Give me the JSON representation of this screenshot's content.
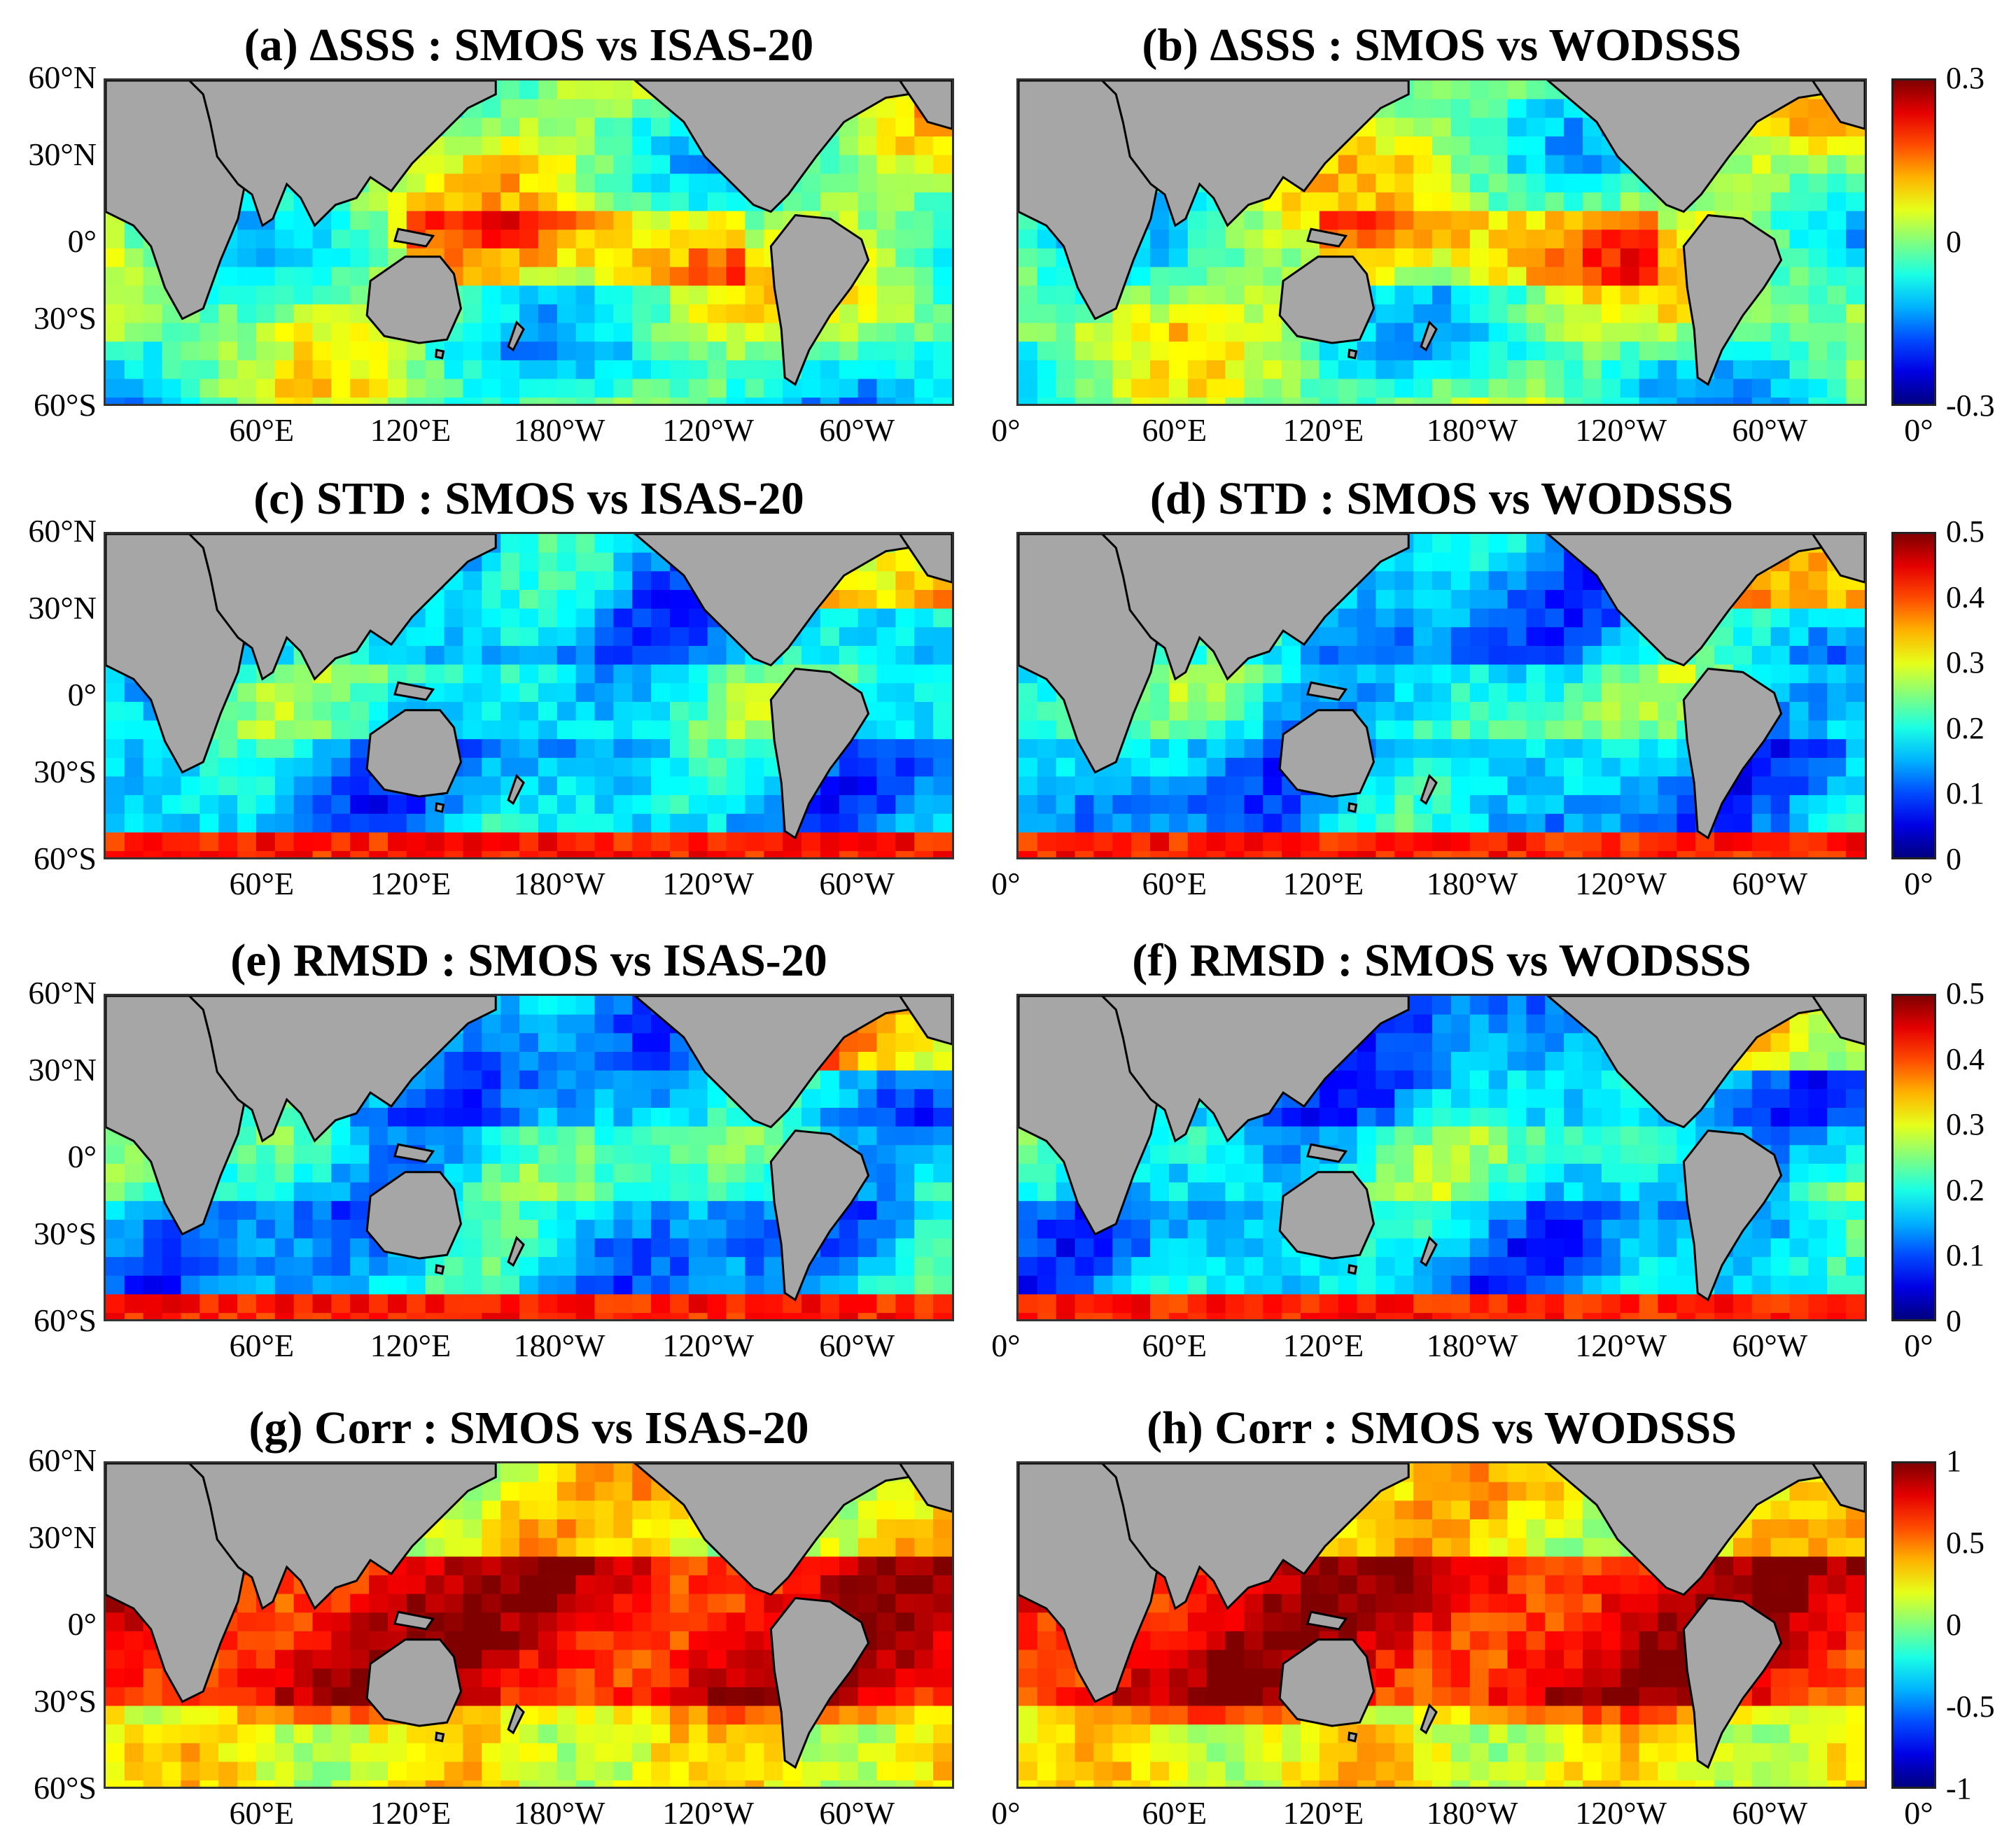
{
  "panels": [
    {
      "id": "a",
      "title": "(a) ΔSSS : SMOS vs ISAS-20",
      "metric": "delta"
    },
    {
      "id": "b",
      "title": "(b) ΔSSS : SMOS vs WODSSS",
      "metric": "delta"
    },
    {
      "id": "c",
      "title": "(c) STD : SMOS vs ISAS-20",
      "metric": "std"
    },
    {
      "id": "d",
      "title": "(d) STD : SMOS vs WODSSS",
      "metric": "std"
    },
    {
      "id": "e",
      "title": "(e) RMSD : SMOS vs ISAS-20",
      "metric": "rmsd"
    },
    {
      "id": "f",
      "title": "(f) RMSD : SMOS vs WODSSS",
      "metric": "rmsd"
    },
    {
      "id": "g",
      "title": "(g) Corr : SMOS vs ISAS-20",
      "metric": "corr"
    },
    {
      "id": "h",
      "title": "(h) Corr : SMOS vs WODSSS",
      "metric": "corr"
    }
  ],
  "lat_labels": [
    "60°N",
    "30°N",
    "0°",
    "30°S",
    "60°S"
  ],
  "lon_labels": [
    "60°E",
    "120°E",
    "180°W",
    "120°W",
    "60°W",
    "0°"
  ],
  "colorbars": [
    {
      "id": "delta",
      "ticks": [
        "0.3",
        "0",
        "-0.3"
      ]
    },
    {
      "id": "std",
      "ticks": [
        "0.5",
        "0.4",
        "0.3",
        "0.2",
        "0.1",
        "0"
      ]
    },
    {
      "id": "rmsd",
      "ticks": [
        "0.5",
        "0.4",
        "0.3",
        "0.2",
        "0.1",
        "0"
      ]
    },
    {
      "id": "corr",
      "ticks": [
        "1",
        "0.5",
        "0",
        "-0.5",
        "-1"
      ]
    }
  ],
  "colors": {
    "land": "#a6a6a6",
    "ocean_low": "#1a3cff",
    "ocean_mid": "#3fd0ff",
    "ocean_high": "#d40000"
  }
}
